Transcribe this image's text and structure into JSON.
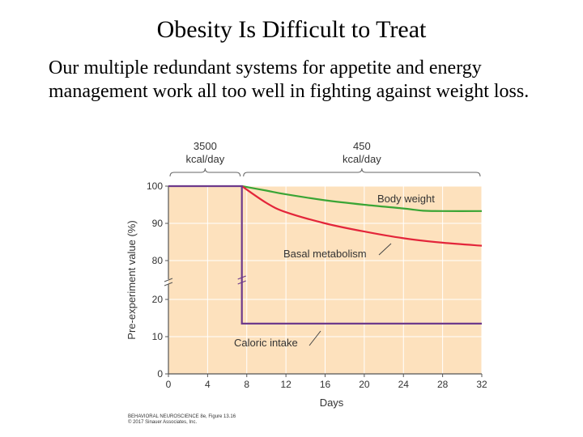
{
  "slide": {
    "title": "Obesity Is Difficult to Treat",
    "body": "Our multiple redundant systems for appetite and energy management work all too well in fighting against weight loss."
  },
  "chart_data": {
    "type": "line",
    "xlabel": "Days",
    "ylabel": "Pre-experiment value (%)",
    "x_ticks": [
      0,
      4,
      8,
      12,
      16,
      20,
      24,
      28,
      32
    ],
    "y_ticks": [
      0,
      10,
      20,
      80,
      90,
      100
    ],
    "y_axis_break": "between 20 and 80",
    "xlim": [
      0,
      32
    ],
    "grid": true,
    "background_color": "#fde1bd",
    "phases": [
      {
        "label_top": "3500",
        "label_bottom": "kcal/day",
        "x_start": 0,
        "x_end": 7.5
      },
      {
        "label_top": "450",
        "label_bottom": "kcal/day",
        "x_start": 7.5,
        "x_end": 32
      }
    ],
    "series": [
      {
        "name": "Body weight",
        "color": "#3aa535",
        "points": [
          [
            7.5,
            100
          ],
          [
            10,
            98.8
          ],
          [
            12,
            97.8
          ],
          [
            16,
            96.2
          ],
          [
            20,
            95.0
          ],
          [
            24,
            94.0
          ],
          [
            26,
            93.4
          ],
          [
            28,
            93.3
          ],
          [
            32,
            93.3
          ]
        ]
      },
      {
        "name": "Basal metabolism",
        "color": "#e3253a",
        "points": [
          [
            7.5,
            100
          ],
          [
            10,
            95.5
          ],
          [
            12,
            93.0
          ],
          [
            16,
            90.0
          ],
          [
            20,
            87.8
          ],
          [
            24,
            86.0
          ],
          [
            28,
            84.8
          ],
          [
            32,
            84.0
          ]
        ]
      },
      {
        "name": "Caloric intake",
        "color": "#6d3a8c",
        "points": [
          [
            0,
            100
          ],
          [
            7.5,
            100
          ],
          [
            7.5,
            13.5
          ],
          [
            32,
            13.5
          ]
        ]
      }
    ],
    "annotations": [
      {
        "text": "Body weight",
        "series": "Body weight"
      },
      {
        "text": "Basal metabolism",
        "series": "Basal metabolism"
      },
      {
        "text": "Caloric intake",
        "series": "Caloric intake"
      }
    ]
  },
  "credit": {
    "line1": "BEHAVIORAL NEUROSCIENCE 8e, Figure 13.16",
    "line2": "© 2017 Sinauer Associates, Inc."
  }
}
